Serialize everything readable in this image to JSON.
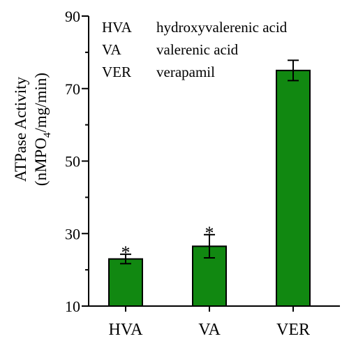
{
  "chart_data": {
    "type": "bar",
    "categories": [
      "HVA",
      "VA",
      "VER"
    ],
    "values": [
      23,
      26.5,
      75
    ],
    "errors": [
      1.3,
      3.2,
      2.8
    ],
    "significance": [
      "*",
      "*",
      ""
    ],
    "ylim": [
      10,
      90
    ],
    "yticks": [
      10,
      30,
      50,
      70,
      90
    ],
    "ylabel_line1": "ATPase Activity",
    "ylabel_line2_pre": "(nMPO",
    "ylabel_line2_sub": "4",
    "ylabel_line2_post": "/mg/min)",
    "bar_color": "#118811",
    "grid": false,
    "legend_position": "top-left",
    "legend": [
      {
        "abbr": "HVA",
        "full": "hydroxyvalerenic acid"
      },
      {
        "abbr": "VA",
        "full": "valerenic acid"
      },
      {
        "abbr": "VER",
        "full": "verapamil"
      }
    ]
  }
}
